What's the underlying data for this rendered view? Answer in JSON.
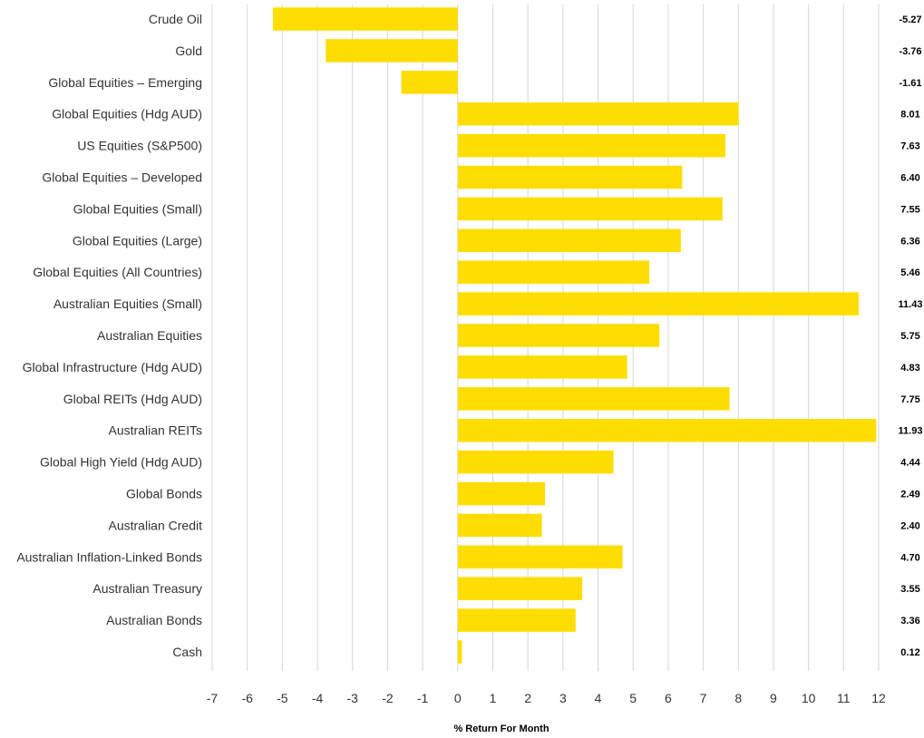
{
  "chart_data": {
    "type": "bar",
    "orientation": "horizontal",
    "xlabel": "% Return For Month",
    "ylabel": "",
    "xlim": [
      -7,
      12
    ],
    "xticks": [
      -7,
      -6,
      -5,
      -4,
      -3,
      -2,
      -1,
      0,
      1,
      2,
      3,
      4,
      5,
      6,
      7,
      8,
      9,
      10,
      11,
      12
    ],
    "grid": "vertical",
    "bar_color": "#FFDD00",
    "categories": [
      "Crude Oil",
      "Gold",
      "Global Equities – Emerging",
      "Global Equities (Hdg AUD)",
      "US Equities (S&P500)",
      "Global Equities – Developed",
      "Global Equities (Small)",
      "Global Equities (Large)",
      "Global Equities (All Countries)",
      "Australian Equities (Small)",
      "Australian Equities",
      "Global Infrastructure (Hdg AUD)",
      "Global REITs (Hdg AUD)",
      "Australian REITs",
      "Global High Yield (Hdg AUD)",
      "Global Bonds",
      "Australian Credit",
      "Australian Inflation-Linked Bonds",
      "Australian Treasury",
      "Australian Bonds",
      "Cash"
    ],
    "values": [
      -5.27,
      -3.76,
      -1.61,
      8.01,
      7.63,
      6.4,
      7.55,
      6.36,
      5.46,
      11.43,
      5.75,
      4.83,
      7.75,
      11.93,
      4.44,
      2.49,
      2.4,
      4.7,
      3.55,
      3.36,
      0.12
    ],
    "value_labels": [
      "-5.27",
      "-3.76",
      "-1.61",
      "8.01",
      "7.63",
      "6.40",
      "7.55",
      "6.36",
      "5.46",
      "11.43",
      "5.75",
      "4.83",
      "7.75",
      "11.93",
      "4.44",
      "2.49",
      "2.40",
      "4.70",
      "3.55",
      "3.36",
      "0.12"
    ]
  }
}
